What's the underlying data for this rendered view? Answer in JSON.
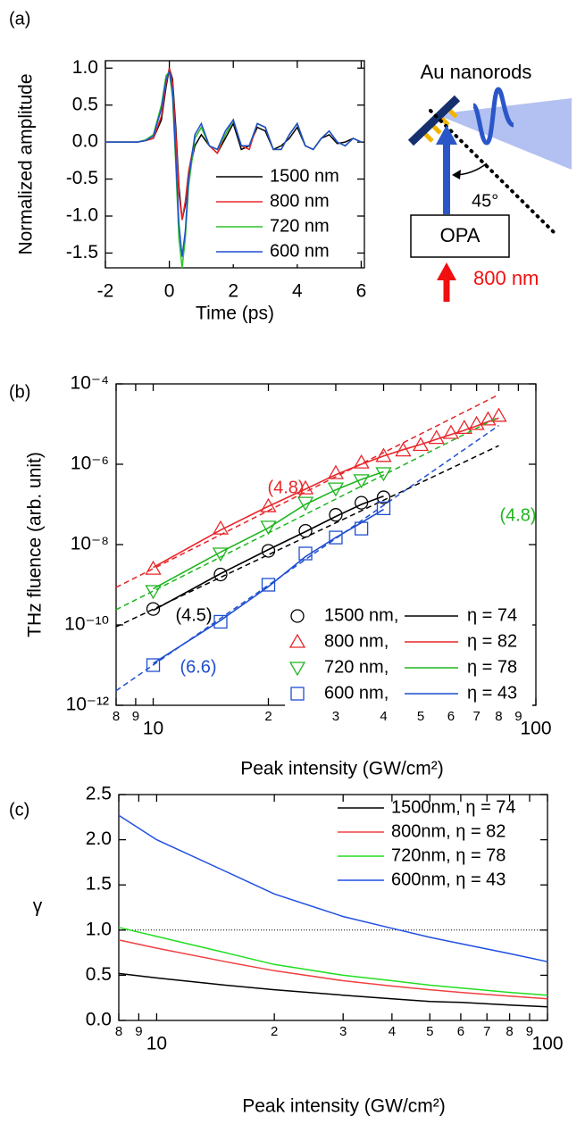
{
  "chart_data": [
    {
      "type": "line",
      "panel_label": "(a)",
      "x_label": "Time (ps)",
      "y_label": "Normalized amplitude",
      "xlim": [
        -2,
        6.1
      ],
      "xticks": [
        -2,
        0,
        2,
        4,
        6
      ],
      "ylim": [
        -1.7,
        1.1
      ],
      "yticks": [
        {
          "value": 1,
          "label": "1.0"
        },
        0.5,
        {
          "value": 0,
          "label": "0.0"
        },
        -0.5,
        {
          "value": -1,
          "label": "-1.0"
        },
        -1.5
      ],
      "legend": "lower right",
      "x": [
        -2,
        -1.5,
        -1,
        -0.75,
        -0.5,
        -0.25,
        -0.1,
        0,
        0.1,
        0.2,
        0.3,
        0.4,
        0.5,
        0.6,
        0.8,
        1.0,
        1.25,
        1.5,
        1.75,
        2.0,
        2.25,
        2.5,
        2.75,
        3.0,
        3.25,
        3.5,
        3.75,
        4.0,
        4.25,
        4.5,
        4.75,
        5.0,
        5.25,
        5.5,
        5.75,
        6.0
      ],
      "series": [
        {
          "name": "1500 nm",
          "color": "#000000",
          "values": [
            0,
            0,
            0,
            0.02,
            0.05,
            0.3,
            0.75,
            1.0,
            0.85,
            0.2,
            -0.6,
            -1.05,
            -0.85,
            -0.45,
            -0.05,
            0.1,
            -0.05,
            -0.15,
            0.05,
            0.25,
            -0.1,
            -0.05,
            0.2,
            0.15,
            -0.1,
            -0.05,
            0.05,
            0.2,
            -0.05,
            -0.1,
            0.05,
            0.1,
            -0.02,
            0,
            0.05,
            0
          ]
        },
        {
          "name": "800 nm",
          "color": "#e8262a",
          "values": [
            0,
            0,
            0,
            0.02,
            0.05,
            0.35,
            0.8,
            1.0,
            0.8,
            0.1,
            -0.7,
            -1.05,
            -0.8,
            -0.4,
            0.05,
            0.2,
            -0.05,
            -0.15,
            0.1,
            0.3,
            -0.05,
            -0.1,
            0.25,
            0.2,
            -0.1,
            -0.1,
            0.1,
            0.25,
            -0.05,
            -0.1,
            0.05,
            0.15,
            0,
            -0.05,
            0.05,
            0
          ]
        },
        {
          "name": "720 nm",
          "color": "#2bc42b",
          "values": [
            0,
            0,
            0,
            0.03,
            0.1,
            0.5,
            0.9,
            0.95,
            0.6,
            -0.3,
            -1.3,
            -1.7,
            -1.3,
            -0.6,
            0.05,
            0.2,
            -0.05,
            -0.1,
            0.1,
            0.3,
            -0.05,
            -0.05,
            0.25,
            0.2,
            -0.1,
            -0.1,
            0.1,
            0.25,
            -0.05,
            -0.1,
            0.05,
            0.15,
            0,
            -0.05,
            0.05,
            0
          ]
        },
        {
          "name": "600 nm",
          "color": "#1f4fd0",
          "values": [
            0,
            0,
            0,
            0.02,
            0.08,
            0.45,
            0.85,
            0.95,
            0.7,
            -0.2,
            -1.1,
            -1.55,
            -1.2,
            -0.5,
            0.1,
            0.25,
            -0.05,
            -0.1,
            0.15,
            0.3,
            -0.05,
            -0.05,
            0.25,
            0.2,
            -0.1,
            -0.1,
            0.1,
            0.25,
            -0.05,
            -0.1,
            0.05,
            0.15,
            0,
            -0.05,
            0.05,
            0
          ]
        }
      ]
    },
    {
      "type": "scatter",
      "panel_label": "(b)",
      "x_label": "Peak intensity (GW/cm²)",
      "y_label": "THz fluence (arb. unit)",
      "xscale": "log",
      "yscale": "log",
      "xlim": [
        8,
        100
      ],
      "ylim": [
        1e-12,
        0.0001
      ],
      "xticks": [
        {
          "value": 8,
          "label": "8"
        },
        {
          "value": 9,
          "label": "9"
        },
        10,
        {
          "value": 20,
          "label": "2"
        },
        {
          "value": 30,
          "label": "3"
        },
        {
          "value": 40,
          "label": "4"
        },
        {
          "value": 50,
          "label": "5"
        },
        {
          "value": 60,
          "label": "6"
        },
        {
          "value": 70,
          "label": "7"
        },
        {
          "value": 80,
          "label": "8"
        },
        {
          "value": 90,
          "label": "9"
        },
        100
      ],
      "yticks": [
        {
          "value": 0.0001,
          "label": "10⁻⁴"
        },
        {
          "value": 1e-06,
          "label": "10⁻⁶"
        },
        {
          "value": 1e-08,
          "label": "10⁻⁸"
        },
        {
          "value": 1e-10,
          "label": "10⁻¹⁰"
        },
        {
          "value": 1e-12,
          "label": "10⁻¹²"
        }
      ],
      "legend": "lower right",
      "series": [
        {
          "name": "1500 nm,",
          "color": "#000000",
          "marker": "circle",
          "x": [
            10,
            15,
            20,
            25,
            30,
            35,
            40
          ],
          "values": [
            2.5e-10,
            1.8e-09,
            7e-09,
            2.2e-08,
            5.5e-08,
            1.1e-07,
            1.5e-07
          ],
          "fit": {
            "name": "η = 74",
            "values": [
              2.3e-10,
              1.9e-09,
              7.5e-09,
              2.1e-08,
              5e-08,
              1e-07,
              1.6e-07
            ]
          },
          "power_law": {
            "label": "(4.5)",
            "x": [
              8,
              80
            ],
            "values": [
              9e-11,
              2.9e-06
            ]
          }
        },
        {
          "name": "800 nm,",
          "color": "#e8262a",
          "marker": "triangle-up",
          "x": [
            10,
            15,
            20,
            25,
            30,
            35,
            40,
            45,
            50,
            55,
            60,
            65,
            70,
            75,
            80
          ],
          "values": [
            2.5e-09,
            2.5e-08,
            9e-08,
            2.5e-07,
            6e-07,
            1.1e-06,
            1.6e-06,
            2.2e-06,
            3e-06,
            4.5e-06,
            6e-06,
            8e-06,
            1e-05,
            1.3e-05,
            1.6e-05
          ],
          "fit": {
            "name": "η = 82",
            "values": [
              2.7e-09,
              2.3e-08,
              9e-08,
              2.4e-07,
              5.5e-07,
              1e-06,
              1.6e-06,
              2.3e-06,
              3.1e-06,
              4.2e-06,
              5.5e-06,
              7e-06,
              9e-06,
              1.15e-05,
              1.4e-05
            ]
          },
          "power_law": {
            "label": "(4.8)",
            "x": [
              8,
              80
            ],
            "values": [
              8.6e-10,
              5.4e-05
            ]
          }
        },
        {
          "name": "720 nm,",
          "color": "#1fb51f",
          "marker": "triangle-down",
          "x": [
            10,
            15,
            20,
            25,
            30,
            35,
            40
          ],
          "values": [
            7e-10,
            6e-09,
            2.8e-08,
            1.1e-07,
            2.5e-07,
            4e-07,
            6e-07
          ],
          "fit": {
            "name": "η = 78",
            "values": [
              8e-10,
              6.5e-09,
              2.6e-08,
              1e-07,
              2.3e-07,
              4.2e-07,
              6.5e-07
            ]
          },
          "power_law": {
            "label": "(4.8)",
            "x": [
              8,
              80
            ],
            "values": [
              2.4e-10,
              1.5e-05
            ]
          }
        },
        {
          "name": "600 nm,",
          "color": "#1f4fd0",
          "marker": "square",
          "x": [
            10,
            15,
            20,
            25,
            30,
            35,
            40
          ],
          "values": [
            1e-11,
            1.2e-10,
            1e-09,
            6e-09,
            1.5e-08,
            2.5e-08,
            8e-08
          ],
          "fit": {
            "name": "η = 43",
            "values": [
              1.1e-11,
              1.3e-10,
              9e-10,
              5e-09,
              1.5e-08,
              3.5e-08,
              7.5e-08
            ]
          },
          "power_law": {
            "label": "(6.6)",
            "x": [
              8,
              80
            ],
            "values": [
              2.3e-12,
              9.2e-06
            ]
          }
        }
      ]
    },
    {
      "type": "line",
      "panel_label": "(c)",
      "x_label": "Peak intensity (GW/cm²)",
      "y_label": "γ",
      "xscale": "log",
      "xlim": [
        8,
        100
      ],
      "ylim": [
        0,
        2.5
      ],
      "xticks": [
        {
          "value": 8,
          "label": "8"
        },
        {
          "value": 9,
          "label": "9"
        },
        10,
        {
          "value": 20,
          "label": "2"
        },
        {
          "value": 30,
          "label": "3"
        },
        {
          "value": 40,
          "label": "4"
        },
        {
          "value": 50,
          "label": "5"
        },
        {
          "value": 60,
          "label": "6"
        },
        {
          "value": 70,
          "label": "7"
        },
        {
          "value": 80,
          "label": "8"
        },
        {
          "value": 90,
          "label": "9"
        },
        100
      ],
      "yticks": [
        {
          "value": 0,
          "label": "0.0"
        },
        0.5,
        {
          "value": 1,
          "label": "1.0"
        },
        1.5,
        {
          "value": 2,
          "label": "2.0"
        },
        2.5
      ],
      "hline": 1,
      "legend": "upper right",
      "x": [
        8,
        10,
        15,
        20,
        30,
        40,
        50,
        60,
        80,
        100
      ],
      "series": [
        {
          "name": "1500nm, η = 74",
          "color": "#000000",
          "values": [
            0.52,
            0.47,
            0.39,
            0.34,
            0.28,
            0.24,
            0.21,
            0.2,
            0.17,
            0.15
          ]
        },
        {
          "name": "800nm, η = 82",
          "color": "#f04040",
          "values": [
            0.89,
            0.8,
            0.65,
            0.55,
            0.44,
            0.38,
            0.34,
            0.31,
            0.27,
            0.24
          ]
        },
        {
          "name": "720nm, η = 78",
          "color": "#22dd22",
          "values": [
            1.03,
            0.93,
            0.75,
            0.62,
            0.5,
            0.44,
            0.39,
            0.36,
            0.31,
            0.28
          ]
        },
        {
          "name": "600nm, η = 43",
          "color": "#1f4fe0",
          "values": [
            2.27,
            2.0,
            1.65,
            1.4,
            1.15,
            1.02,
            0.92,
            0.85,
            0.74,
            0.65
          ]
        }
      ]
    }
  ],
  "diagram": {
    "title": "Au nanorods",
    "angle": "45°",
    "source": "OPA",
    "pump": "800 nm"
  }
}
